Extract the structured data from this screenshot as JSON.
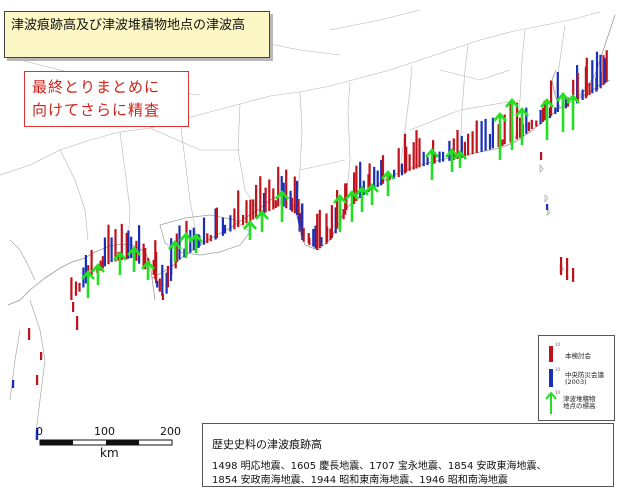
{
  "title": "津波痕跡高及び津波堆積物地点の津波高",
  "note_lines": [
    "最終とりまとめに",
    "向けてさらに精査"
  ],
  "legend": {
    "items": [
      {
        "label": "本検討会",
        "color": "#c0121a",
        "tick": "10"
      },
      {
        "label": "中央防災会議\n(2003)",
        "color": "#1a2fb8",
        "tick": "10"
      },
      {
        "label": "津波堆積物\n地点の標高",
        "color": "#22e022",
        "tick": "10"
      }
    ]
  },
  "history": {
    "heading": "歴史史料の津波痕跡高",
    "line1": "1498 明応地震、1605 慶長地震、1707 宝永地震、1854 安政東海地震、",
    "line2": "1854 安政南海地震、1944 昭和東南海地震、1946 昭和南海地震"
  },
  "scale": {
    "ticks": [
      "0",
      "100",
      "200"
    ],
    "unit": "km"
  },
  "colors": {
    "red": "#c0121a",
    "blue": "#1a2fb8",
    "green": "#22e022",
    "outline": "#9a9a9a"
  }
}
